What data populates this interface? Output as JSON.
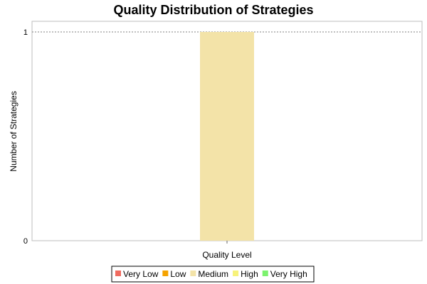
{
  "chart_data": {
    "type": "bar",
    "title": "Quality Distribution of Strategies",
    "xlabel": "Quality Level",
    "ylabel": "Number of Strategies",
    "ylim": [
      0,
      1
    ],
    "yticks": [
      "0",
      "1"
    ],
    "grid": true,
    "legend_position": "bottom",
    "series": [
      {
        "name": "Very Low",
        "color": "#f06b5f",
        "values": [
          0
        ]
      },
      {
        "name": "Low",
        "color": "#f5a300",
        "values": [
          0
        ]
      },
      {
        "name": "Medium",
        "color": "#f3e3a8",
        "values": [
          1
        ]
      },
      {
        "name": "High",
        "color": "#f7f27a",
        "values": [
          0
        ]
      },
      {
        "name": "Very High",
        "color": "#7cf26e",
        "values": [
          0
        ]
      }
    ]
  }
}
